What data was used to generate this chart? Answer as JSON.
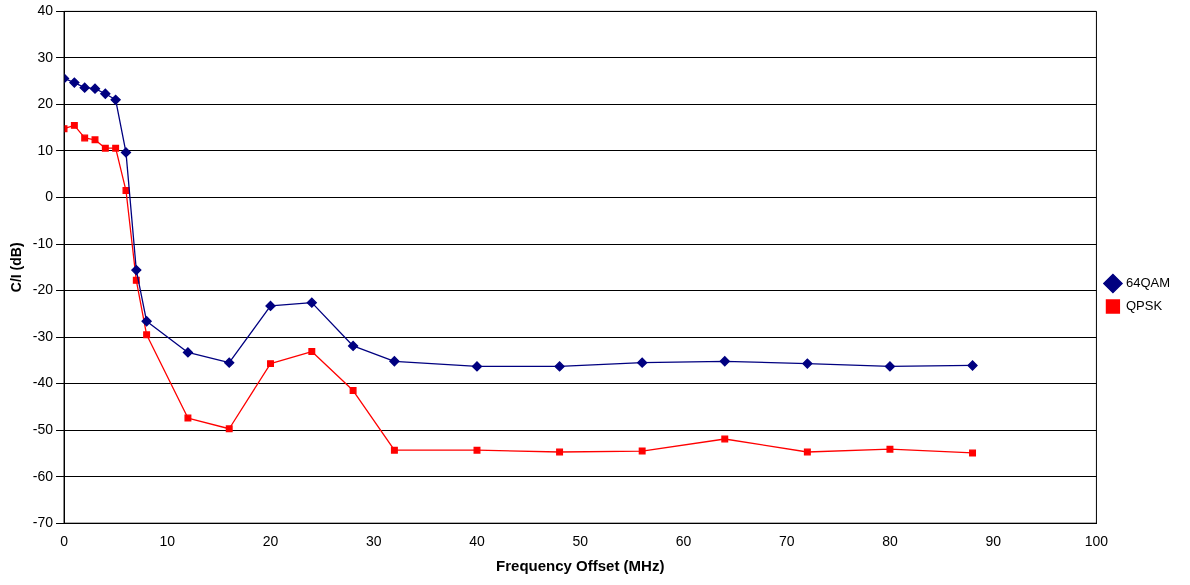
{
  "chart_data": {
    "type": "line",
    "xlabel": "Frequency Offset (MHz)",
    "ylabel": "C/I (dB)",
    "x": [
      0,
      1,
      2,
      3,
      4,
      5,
      6,
      7,
      8,
      12,
      16,
      20,
      24,
      28,
      32,
      40,
      48,
      56,
      64,
      72,
      80,
      88
    ],
    "series": [
      {
        "name": "64QAM",
        "color": "#000080",
        "marker": "diamond",
        "values": [
          25.6,
          24.7,
          23.6,
          23.4,
          22.3,
          21,
          9.7,
          -15.6,
          -26.6,
          -33.3,
          -35.5,
          -23.3,
          -22.6,
          -31.9,
          -35.2,
          -36.3,
          -36.3,
          -35.5,
          -35.2,
          -35.7,
          -36.3,
          -36.1
        ]
      },
      {
        "name": "QPSK",
        "color": "#ff0000",
        "marker": "square",
        "values": [
          14.8,
          15.5,
          12.8,
          12.4,
          10.6,
          10.6,
          1.5,
          -17.8,
          -29.5,
          -47.4,
          -49.7,
          -35.7,
          -33.1,
          -41.5,
          -54.3,
          -54.3,
          -54.7,
          -54.5,
          -51.9,
          -54.7,
          -54.1,
          -54.9
        ]
      }
    ],
    "xlim": [
      0,
      100
    ],
    "xticks": [
      0,
      10,
      20,
      30,
      40,
      50,
      60,
      70,
      80,
      90,
      100
    ],
    "ylim": [
      -70,
      40
    ],
    "yticks": [
      -70,
      -60,
      -50,
      -40,
      -30,
      -20,
      -10,
      0,
      10,
      20,
      30,
      40
    ],
    "grid": "y",
    "legend": "right",
    "line_style": "solid"
  }
}
